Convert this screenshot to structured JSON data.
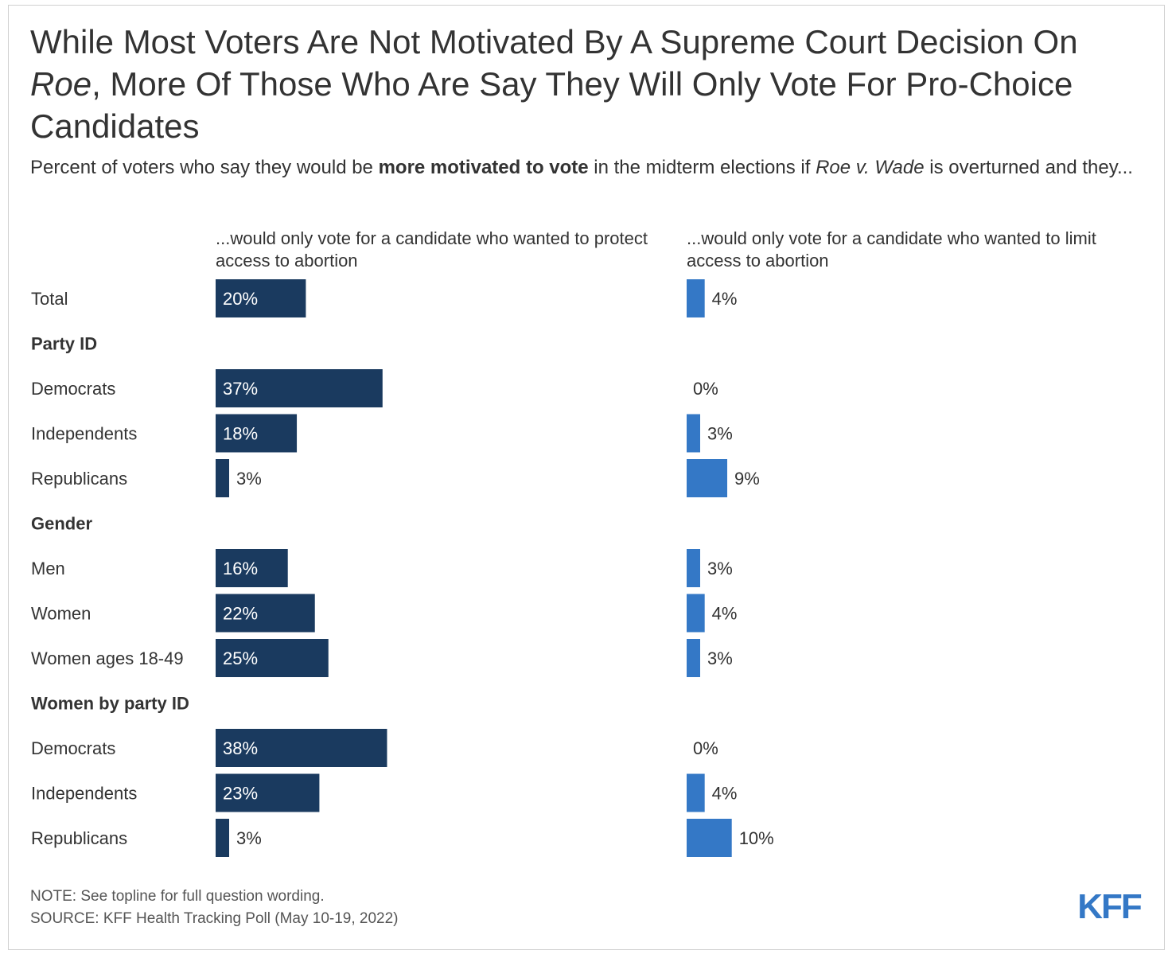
{
  "header": {
    "title_parts": [
      {
        "text": "While Most Voters Are Not Motivated By A Supreme Court Decision On ",
        "style": "normal"
      },
      {
        "text": "Roe",
        "style": "italic"
      },
      {
        "text": ", More Of Those Who Are Say They Will Only Vote For Pro-Choice Candidates",
        "style": "normal"
      }
    ],
    "subtitle_parts": [
      {
        "text": "Percent of voters who say they would be ",
        "style": "normal"
      },
      {
        "text": "more motivated to vote",
        "style": "bold"
      },
      {
        "text": " in the midterm elections if ",
        "style": "normal"
      },
      {
        "text": "Roe v. Wade",
        "style": "italic"
      },
      {
        "text": " is overturned and they...",
        "style": "normal"
      }
    ]
  },
  "chart_data": {
    "type": "bar",
    "orientation": "horizontal",
    "unit": "%",
    "xlim": [
      0,
      100
    ],
    "colors": {
      "protect": "#1a3a5f",
      "limit": "#3478c6"
    },
    "columns": [
      {
        "key": "protect",
        "label": "...would only vote for a candidate who wanted to protect access to abortion"
      },
      {
        "key": "limit",
        "label": "...would only vote for a candidate who wanted to limit access to abortion"
      }
    ],
    "rows": [
      {
        "kind": "item",
        "label": "Total",
        "protect": 20,
        "limit": 4
      },
      {
        "kind": "group",
        "label": "Party ID"
      },
      {
        "kind": "item",
        "label": "Democrats",
        "protect": 37,
        "limit": 0
      },
      {
        "kind": "item",
        "label": "Independents",
        "protect": 18,
        "limit": 3
      },
      {
        "kind": "item",
        "label": "Republicans",
        "protect": 3,
        "limit": 9
      },
      {
        "kind": "group",
        "label": "Gender"
      },
      {
        "kind": "item",
        "label": "Men",
        "protect": 16,
        "limit": 3
      },
      {
        "kind": "item",
        "label": "Women",
        "protect": 22,
        "limit": 4
      },
      {
        "kind": "item",
        "label": "Women ages 18-49",
        "protect": 25,
        "limit": 3
      },
      {
        "kind": "group",
        "label": "Women by party ID"
      },
      {
        "kind": "item",
        "label": "Democrats",
        "protect": 38,
        "limit": 0
      },
      {
        "kind": "item",
        "label": "Independents",
        "protect": 23,
        "limit": 4
      },
      {
        "kind": "item",
        "label": "Republicans",
        "protect": 3,
        "limit": 10
      }
    ]
  },
  "footer": {
    "note": "NOTE: See topline for full question wording.",
    "source": "SOURCE: KFF Health Tracking Poll (May 10-19, 2022)"
  },
  "logo": {
    "text": "KFF",
    "color": "#3478c6"
  }
}
